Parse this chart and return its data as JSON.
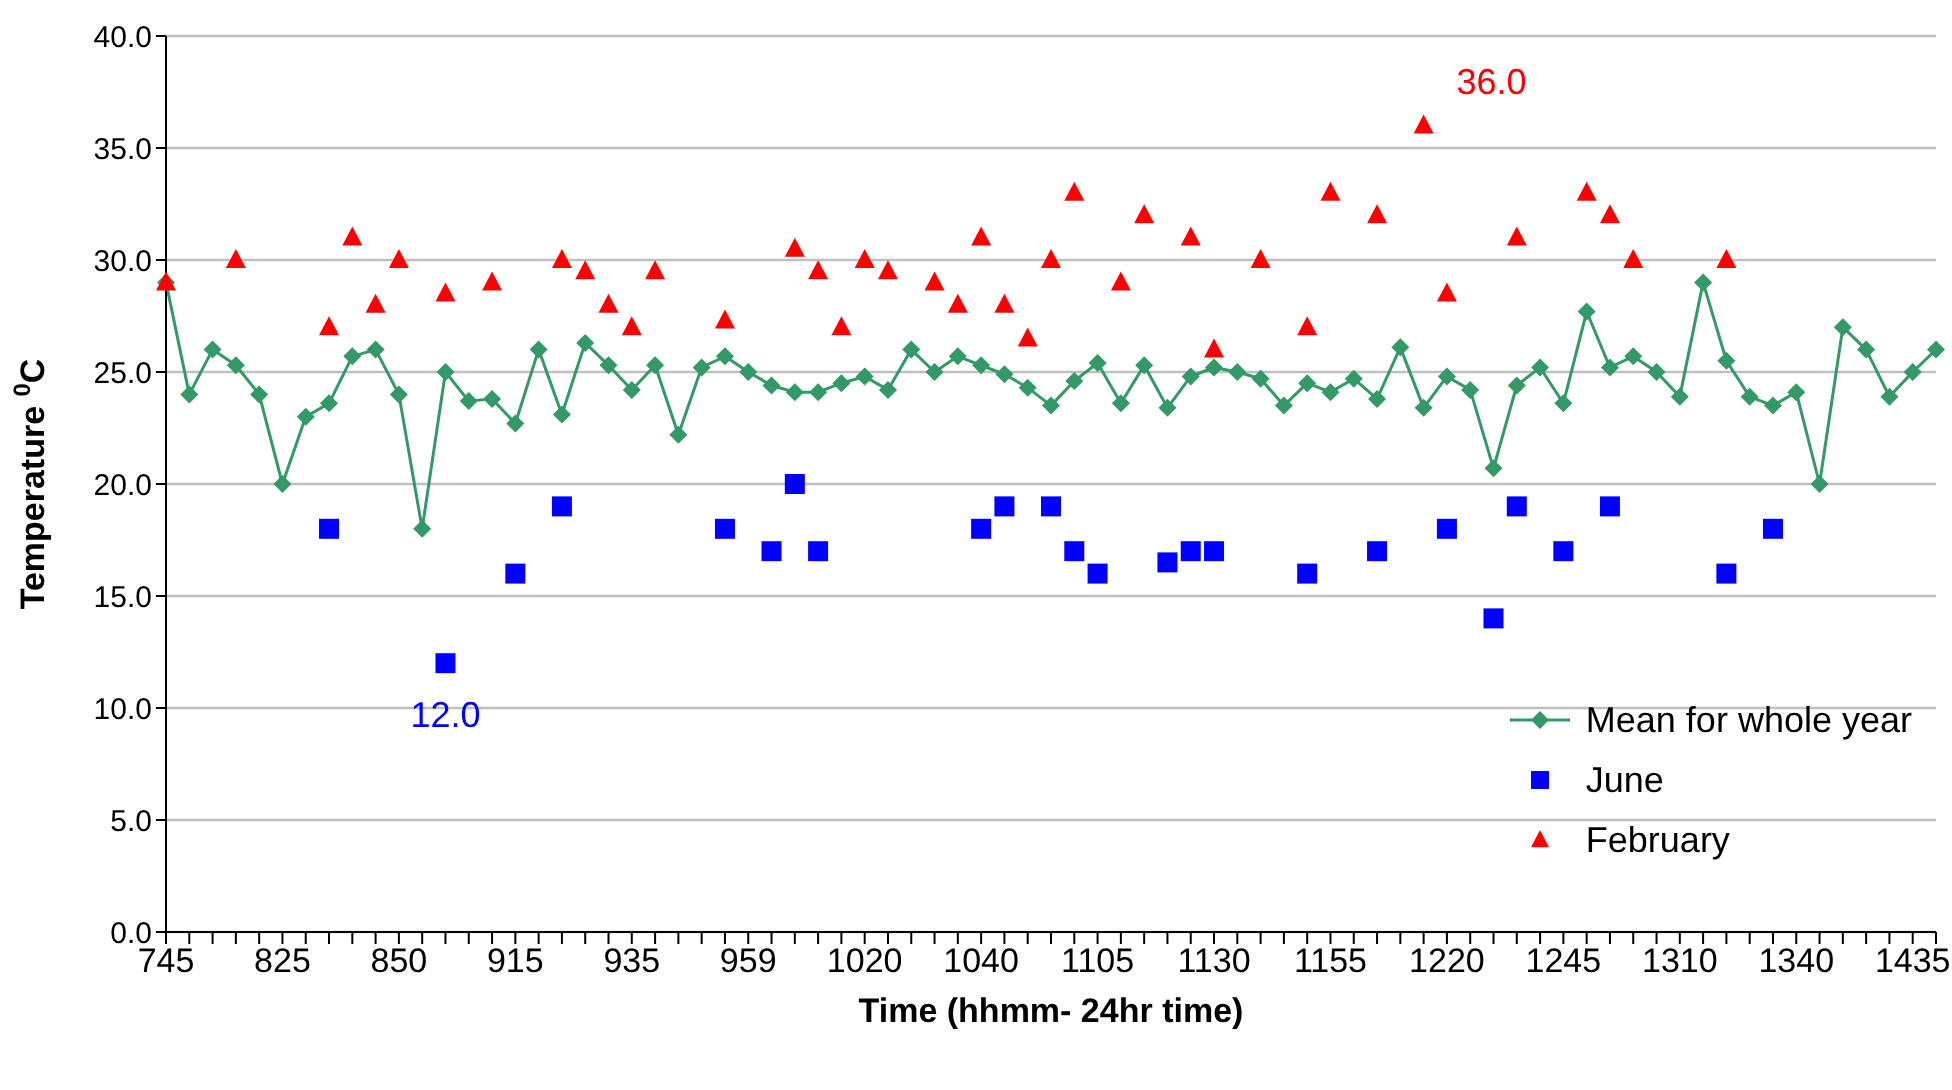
{
  "chart_data": {
    "type": "line",
    "xlabel": "Time (hhmm- 24hr time)",
    "ylabel": "Temperature $^{0}$C",
    "categories": [
      "745",
      null,
      null,
      null,
      null,
      "825",
      null,
      null,
      null,
      null,
      "850",
      null,
      null,
      null,
      null,
      "915",
      null,
      null,
      null,
      null,
      "935",
      null,
      null,
      null,
      null,
      "959",
      null,
      null,
      null,
      null,
      "1020",
      null,
      null,
      null,
      null,
      "1040",
      null,
      null,
      null,
      null,
      "1105",
      null,
      null,
      null,
      null,
      "1130",
      null,
      null,
      null,
      null,
      "1155",
      null,
      null,
      null,
      null,
      "1220",
      null,
      null,
      null,
      null,
      "1245",
      null,
      null,
      null,
      null,
      "1310",
      null,
      null,
      null,
      null,
      "1340",
      null,
      null,
      null,
      null,
      "1435",
      null
    ],
    "series": [
      {
        "name": "Mean for whole year",
        "type": "line",
        "marker": "diamond",
        "color": "#339966",
        "values": [
          29.0,
          24.0,
          26.0,
          25.3,
          24.0,
          20.0,
          23.0,
          23.6,
          25.7,
          26.0,
          24.0,
          18.0,
          25.0,
          23.7,
          23.8,
          22.7,
          26.0,
          23.1,
          26.3,
          25.3,
          24.2,
          25.3,
          22.2,
          25.2,
          25.7,
          25.0,
          24.4,
          24.1,
          24.1,
          24.5,
          24.8,
          24.2,
          26.0,
          25.0,
          25.7,
          25.3,
          24.9,
          24.3,
          23.5,
          24.6,
          25.4,
          23.6,
          25.3,
          23.4,
          24.8,
          25.2,
          25.0,
          24.7,
          23.5,
          24.5,
          24.1,
          24.7,
          23.8,
          26.1,
          23.4,
          24.8,
          24.2,
          20.7,
          24.4,
          25.2,
          23.6,
          27.7,
          25.2,
          25.7,
          25.0,
          23.9,
          29.0,
          25.5,
          23.9,
          23.5,
          24.1,
          20.0,
          27.0,
          26.0,
          23.9,
          25.0,
          26.0
        ]
      },
      {
        "name": "June",
        "type": "scatter",
        "marker": "square",
        "color": "#0000ff",
        "values": [
          null,
          null,
          null,
          null,
          null,
          null,
          null,
          18.0,
          null,
          null,
          null,
          null,
          12.0,
          null,
          null,
          16.0,
          null,
          19.0,
          null,
          null,
          null,
          null,
          null,
          null,
          18.0,
          null,
          17.0,
          20.0,
          17.0,
          null,
          null,
          null,
          null,
          null,
          null,
          18.0,
          19.0,
          null,
          19.0,
          17.0,
          16.0,
          null,
          null,
          16.5,
          17.0,
          17.0,
          null,
          null,
          null,
          16.0,
          null,
          null,
          17.0,
          null,
          null,
          18.0,
          null,
          14.0,
          19.0,
          null,
          17.0,
          null,
          19.0,
          null,
          null,
          null,
          null,
          16.0,
          null,
          18.0,
          null,
          null,
          null,
          null,
          null,
          null,
          null
        ],
        "value_labels": [
          null,
          null,
          null,
          null,
          null,
          null,
          null,
          null,
          null,
          null,
          null,
          null,
          "12.0",
          null,
          null,
          null,
          null,
          null,
          null,
          null,
          null,
          null,
          null,
          null,
          null,
          null,
          null,
          null,
          null,
          null,
          null,
          null,
          null,
          null,
          null,
          null,
          null,
          null,
          null,
          null,
          null,
          null,
          null,
          null,
          null,
          null,
          null,
          null,
          null,
          null,
          null,
          null,
          null,
          null,
          null,
          null,
          null,
          null,
          null,
          null,
          null,
          null,
          null,
          null,
          null,
          null,
          null,
          null,
          null,
          null,
          null,
          null,
          null,
          null,
          null,
          null,
          null
        ]
      },
      {
        "name": "February",
        "type": "scatter",
        "marker": "triangle",
        "color": "#ff0000",
        "values": [
          29.0,
          null,
          null,
          30.0,
          null,
          null,
          null,
          27.0,
          31.0,
          28.0,
          30.0,
          null,
          28.5,
          null,
          29.0,
          null,
          null,
          30.0,
          29.5,
          28.0,
          27.0,
          29.5,
          null,
          null,
          27.3,
          null,
          null,
          30.5,
          29.5,
          27.0,
          30.0,
          29.5,
          null,
          29.0,
          28.0,
          31.0,
          28.0,
          26.5,
          30.0,
          33.0,
          null,
          29.0,
          32.0,
          null,
          31.0,
          26.0,
          null,
          30.0,
          null,
          27.0,
          33.0,
          null,
          32.0,
          null,
          36.0,
          28.5,
          null,
          null,
          31.0,
          null,
          null,
          33.0,
          32.0,
          30.0,
          null,
          null,
          null,
          30.0,
          null,
          null,
          null,
          null,
          null,
          null,
          null,
          null,
          null
        ],
        "value_labels": [
          null,
          null,
          null,
          null,
          null,
          null,
          null,
          null,
          null,
          null,
          null,
          null,
          null,
          null,
          null,
          null,
          null,
          null,
          null,
          null,
          null,
          null,
          null,
          null,
          null,
          null,
          null,
          null,
          null,
          null,
          null,
          null,
          null,
          null,
          null,
          null,
          null,
          null,
          null,
          null,
          null,
          null,
          null,
          null,
          null,
          null,
          null,
          null,
          null,
          null,
          null,
          null,
          null,
          null,
          "36.0",
          null,
          null,
          null,
          null,
          null,
          null,
          null,
          null,
          null,
          null,
          null,
          null,
          null,
          null,
          null,
          null,
          null,
          null,
          null,
          null,
          null,
          null
        ]
      }
    ],
    "ylim": [
      0,
      40
    ],
    "yticks": [
      {
        "value": 0,
        "label": "0.0"
      },
      {
        "value": 5,
        "label": "5.0"
      },
      {
        "value": 10,
        "label": "10.0"
      },
      {
        "value": 15,
        "label": "15.0"
      },
      {
        "value": 20,
        "label": "20.0"
      },
      {
        "value": 25,
        "label": "25.0"
      },
      {
        "value": 30,
        "label": "30.0"
      },
      {
        "value": 35,
        "label": "35.0"
      },
      {
        "value": 40,
        "label": "40.0"
      }
    ],
    "grid": "y",
    "legend": "bottom right"
  }
}
